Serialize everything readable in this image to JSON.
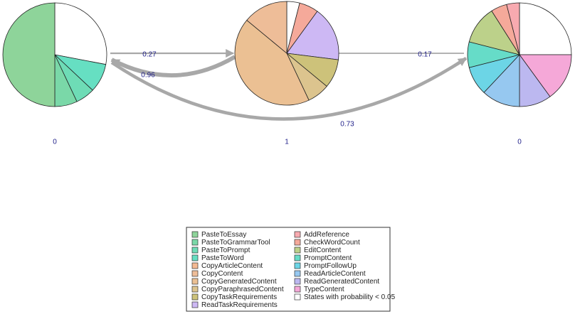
{
  "chart_data": {
    "type": "network",
    "states": [
      {
        "name": "PasteToEssay",
        "color": "#8ed49a"
      },
      {
        "name": "PasteToGrammarTool",
        "color": "#7ad8a8"
      },
      {
        "name": "PasteToPrompt",
        "color": "#6edcb6"
      },
      {
        "name": "PasteToWord",
        "color": "#66dfc2"
      },
      {
        "name": "CopyArticleContent",
        "color": "#f4b993"
      },
      {
        "name": "CopyContent",
        "color": "#eebd98"
      },
      {
        "name": "CopyGeneratedContent",
        "color": "#ebc093"
      },
      {
        "name": "CopyParaphrasedContent",
        "color": "#dcc48e"
      },
      {
        "name": "CopyTaskRequirements",
        "color": "#cdc27a"
      },
      {
        "name": "ReadTaskRequirements",
        "color": "#cdb8f4"
      },
      {
        "name": "AddReference",
        "color": "#f8aab0"
      },
      {
        "name": "CheckWordCount",
        "color": "#f5a99a"
      },
      {
        "name": "EditContent",
        "color": "#bcd18a"
      },
      {
        "name": "PromptContent",
        "color": "#66dcc8"
      },
      {
        "name": "PromptFollowUp",
        "color": "#6cd5e6"
      },
      {
        "name": "ReadArticleContent",
        "color": "#96c8f0"
      },
      {
        "name": "ReadGeneratedContent",
        "color": "#bcb8f0"
      },
      {
        "name": "TypeContent",
        "color": "#f5a8d8"
      },
      {
        "name": "States with probability < 0.05",
        "color": "#ffffff"
      }
    ],
    "nodes": [
      {
        "initial_prob": 0,
        "values": [
          0.5,
          0.07,
          0.06,
          0.09,
          null,
          null,
          null,
          null,
          null,
          null,
          null,
          null,
          null,
          null,
          null,
          null,
          null,
          null,
          0.28
        ]
      },
      {
        "initial_prob": 1,
        "values": [
          null,
          null,
          null,
          null,
          null,
          0.14,
          0.43,
          0.07,
          0.09,
          0.17,
          null,
          0.06,
          null,
          null,
          null,
          null,
          null,
          null,
          0.04
        ]
      },
      {
        "initial_prob": 0,
        "values": [
          null,
          null,
          null,
          null,
          null,
          null,
          null,
          null,
          null,
          null,
          0.04,
          0.05,
          0.12,
          0.08,
          0.09,
          0.12,
          0.1,
          0.15,
          0.25
        ]
      }
    ],
    "edges": [
      {
        "from": 0,
        "to": 1,
        "value": 0.27
      },
      {
        "from": 1,
        "to": 0,
        "value": 0.96
      },
      {
        "from": 2,
        "to": 1,
        "value": 0.17
      },
      {
        "from": 0,
        "to": 2,
        "value": 0.73
      }
    ]
  }
}
